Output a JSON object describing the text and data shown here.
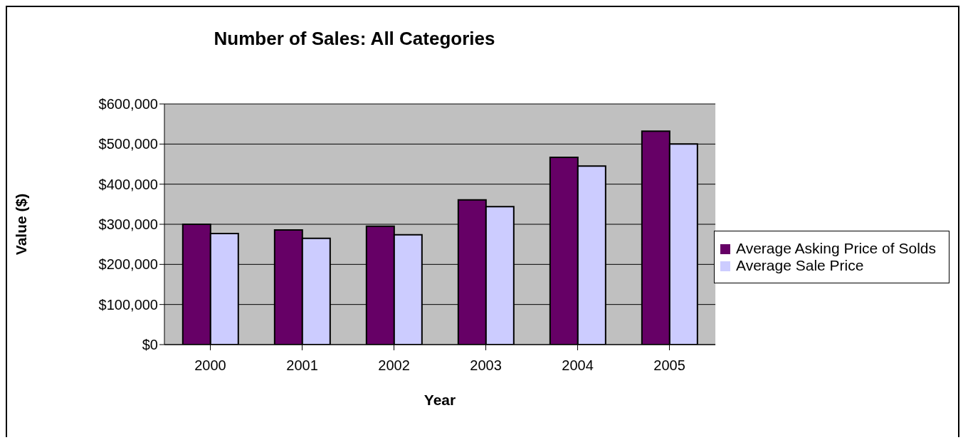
{
  "chart_data": {
    "type": "bar",
    "title": "Number of Sales: All Categories",
    "xlabel": "Year",
    "ylabel": "Value ($)",
    "categories": [
      "2000",
      "2001",
      "2002",
      "2003",
      "2004",
      "2005"
    ],
    "series": [
      {
        "name": "Average Asking Price of Solds",
        "color": "#660066",
        "values": [
          300000,
          286000,
          295000,
          361000,
          467000,
          532000
        ]
      },
      {
        "name": "Average Sale Price",
        "color": "#ccccff",
        "values": [
          277000,
          265000,
          274000,
          344000,
          445000,
          500000
        ]
      }
    ],
    "ylim": [
      0,
      600000
    ],
    "yticks": [
      {
        "value": 0,
        "label": "$0"
      },
      {
        "value": 100000,
        "label": "$100,000"
      },
      {
        "value": 200000,
        "label": "$200,000"
      },
      {
        "value": 300000,
        "label": "$300,000"
      },
      {
        "value": 400000,
        "label": "$400,000"
      },
      {
        "value": 500000,
        "label": "$500,000"
      },
      {
        "value": 600000,
        "label": "$600,000"
      }
    ],
    "grid": "y",
    "legend": "right"
  }
}
